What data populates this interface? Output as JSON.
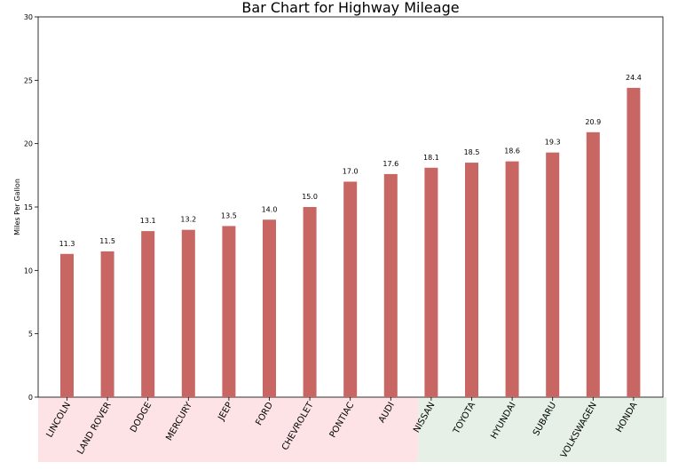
{
  "chart_data": {
    "type": "bar",
    "title": "Bar Chart for Highway Mileage",
    "xlabel": "",
    "ylabel": "Miles Per Gallon",
    "ylim": [
      0,
      30
    ],
    "yticks": [
      "0",
      "5",
      "10",
      "15",
      "20",
      "25",
      "30"
    ],
    "grid": false,
    "categories": [
      "LINCOLN",
      "LAND ROVER",
      "DODGE",
      "MERCURY",
      "JEEP",
      "FORD",
      "CHEVROLET",
      "PONTIAC",
      "AUDI",
      "NISSAN",
      "TOYOTA",
      "HYUNDAI",
      "SUBARU",
      "VOLKSWAGEN",
      "HONDA"
    ],
    "values": [
      11.3,
      11.5,
      13.1,
      13.2,
      13.5,
      14.0,
      15.0,
      17.0,
      17.6,
      18.1,
      18.5,
      18.6,
      19.3,
      20.9,
      24.4
    ],
    "value_labels": [
      "11.3",
      "11.5",
      "13.1",
      "13.2",
      "13.5",
      "14.0",
      "15.0",
      "17.0",
      "17.6",
      "18.1",
      "18.5",
      "18.6",
      "19.3",
      "20.9",
      "24.4"
    ],
    "bar_color": "#c86664",
    "shaded_regions": [
      {
        "from_category": 0,
        "to_category": 8,
        "color": "#fde3e5"
      },
      {
        "from_category": 9,
        "to_category": 14,
        "color": "#e6f0e6"
      }
    ]
  }
}
